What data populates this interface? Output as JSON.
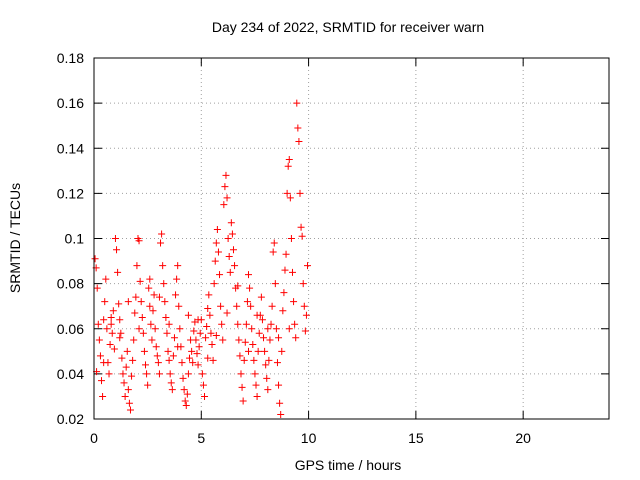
{
  "chart_data": {
    "type": "scatter",
    "title": "Day 234 of 2022, SRMTID for receiver warn",
    "xlabel": "GPS time / hours",
    "ylabel": "SRMTID / TECUs",
    "xlim": [
      0,
      24
    ],
    "ylim": [
      0.02,
      0.18
    ],
    "xticks": [
      {
        "value": 0,
        "label": "0"
      },
      {
        "value": 5,
        "label": "5"
      },
      {
        "value": 10,
        "label": "10"
      },
      {
        "value": 15,
        "label": "15"
      },
      {
        "value": 20,
        "label": "20"
      }
    ],
    "yticks": [
      {
        "value": 0.02,
        "label": "0.02"
      },
      {
        "value": 0.04,
        "label": "0.04"
      },
      {
        "value": 0.06,
        "label": "0.06"
      },
      {
        "value": 0.08,
        "label": "0.08"
      },
      {
        "value": 0.1,
        "label": "0.1"
      },
      {
        "value": 0.12,
        "label": "0.12"
      },
      {
        "value": 0.14,
        "label": "0.14"
      },
      {
        "value": 0.16,
        "label": "0.16"
      },
      {
        "value": 0.18,
        "label": "0.18"
      }
    ],
    "grid": true,
    "marker": "+",
    "color": "#ff0000",
    "series": [
      {
        "name": "SRMTID",
        "points": [
          [
            0.05,
            0.091
          ],
          [
            0.1,
            0.087
          ],
          [
            0.15,
            0.078
          ],
          [
            0.2,
            0.062
          ],
          [
            0.25,
            0.055
          ],
          [
            0.3,
            0.048
          ],
          [
            0.35,
            0.037
          ],
          [
            0.4,
            0.03
          ],
          [
            0.45,
            0.064
          ],
          [
            0.5,
            0.072
          ],
          [
            0.55,
            0.082
          ],
          [
            0.6,
            0.06
          ],
          [
            0.65,
            0.045
          ],
          [
            0.7,
            0.04
          ],
          [
            0.75,
            0.053
          ],
          [
            0.8,
            0.062
          ],
          [
            0.85,
            0.058
          ],
          [
            0.9,
            0.068
          ],
          [
            0.95,
            0.051
          ],
          [
            1.0,
            0.1
          ],
          [
            1.05,
            0.095
          ],
          [
            1.1,
            0.085
          ],
          [
            1.15,
            0.071
          ],
          [
            1.2,
            0.064
          ],
          [
            1.25,
            0.058
          ],
          [
            1.3,
            0.047
          ],
          [
            1.35,
            0.04
          ],
          [
            1.4,
            0.036
          ],
          [
            1.45,
            0.03
          ],
          [
            1.5,
            0.043
          ],
          [
            1.55,
            0.05
          ],
          [
            1.6,
            0.033
          ],
          [
            1.65,
            0.027
          ],
          [
            1.7,
            0.024
          ],
          [
            1.75,
            0.039
          ],
          [
            1.8,
            0.046
          ],
          [
            1.85,
            0.055
          ],
          [
            1.9,
            0.067
          ],
          [
            1.95,
            0.074
          ],
          [
            2.0,
            0.088
          ],
          [
            2.05,
            0.1
          ],
          [
            2.1,
            0.099
          ],
          [
            2.15,
            0.081
          ],
          [
            2.2,
            0.072
          ],
          [
            2.25,
            0.065
          ],
          [
            2.3,
            0.058
          ],
          [
            2.35,
            0.05
          ],
          [
            2.4,
            0.044
          ],
          [
            2.45,
            0.04
          ],
          [
            2.5,
            0.035
          ],
          [
            2.55,
            0.078
          ],
          [
            2.6,
            0.07
          ],
          [
            2.65,
            0.062
          ],
          [
            2.7,
            0.055
          ],
          [
            2.75,
            0.068
          ],
          [
            2.8,
            0.075
          ],
          [
            2.85,
            0.06
          ],
          [
            2.9,
            0.052
          ],
          [
            2.95,
            0.048
          ],
          [
            3.0,
            0.045
          ],
          [
            3.05,
            0.04
          ],
          [
            3.1,
            0.098
          ],
          [
            3.15,
            0.102
          ],
          [
            3.2,
            0.088
          ],
          [
            3.25,
            0.08
          ],
          [
            3.3,
            0.072
          ],
          [
            3.35,
            0.065
          ],
          [
            3.4,
            0.058
          ],
          [
            3.45,
            0.05
          ],
          [
            3.5,
            0.046
          ],
          [
            3.55,
            0.04
          ],
          [
            3.6,
            0.036
          ],
          [
            3.65,
            0.033
          ],
          [
            3.7,
            0.048
          ],
          [
            3.75,
            0.056
          ],
          [
            3.8,
            0.075
          ],
          [
            3.85,
            0.082
          ],
          [
            3.9,
            0.088
          ],
          [
            3.95,
            0.07
          ],
          [
            4.0,
            0.06
          ],
          [
            4.05,
            0.052
          ],
          [
            4.1,
            0.045
          ],
          [
            4.15,
            0.038
          ],
          [
            4.2,
            0.033
          ],
          [
            4.25,
            0.028
          ],
          [
            4.3,
            0.026
          ],
          [
            4.35,
            0.031
          ],
          [
            4.4,
            0.04
          ],
          [
            4.45,
            0.047
          ],
          [
            4.5,
            0.055
          ],
          [
            4.55,
            0.05
          ],
          [
            4.6,
            0.045
          ],
          [
            4.65,
            0.059
          ],
          [
            4.7,
            0.063
          ],
          [
            4.75,
            0.055
          ],
          [
            4.8,
            0.049
          ],
          [
            4.85,
            0.044
          ],
          [
            4.9,
            0.052
          ],
          [
            4.95,
            0.058
          ],
          [
            5.0,
            0.064
          ],
          [
            5.05,
            0.04
          ],
          [
            5.1,
            0.035
          ],
          [
            5.15,
            0.03
          ],
          [
            5.2,
            0.056
          ],
          [
            5.25,
            0.061
          ],
          [
            5.3,
            0.069
          ],
          [
            5.35,
            0.075
          ],
          [
            5.4,
            0.066
          ],
          [
            5.45,
            0.058
          ],
          [
            5.5,
            0.053
          ],
          [
            5.55,
            0.046
          ],
          [
            5.6,
            0.08
          ],
          [
            5.65,
            0.09
          ],
          [
            5.7,
            0.098
          ],
          [
            5.75,
            0.104
          ],
          [
            5.8,
            0.094
          ],
          [
            5.85,
            0.084
          ],
          [
            5.9,
            0.07
          ],
          [
            5.95,
            0.062
          ],
          [
            6.0,
            0.055
          ],
          [
            6.05,
            0.115
          ],
          [
            6.1,
            0.123
          ],
          [
            6.15,
            0.128
          ],
          [
            6.2,
            0.118
          ],
          [
            6.25,
            0.1
          ],
          [
            6.3,
            0.092
          ],
          [
            6.35,
            0.085
          ],
          [
            6.4,
            0.107
          ],
          [
            6.45,
            0.102
          ],
          [
            6.5,
            0.095
          ],
          [
            6.55,
            0.088
          ],
          [
            6.6,
            0.078
          ],
          [
            6.65,
            0.07
          ],
          [
            6.7,
            0.062
          ],
          [
            6.75,
            0.055
          ],
          [
            6.8,
            0.048
          ],
          [
            6.85,
            0.04
          ],
          [
            6.9,
            0.034
          ],
          [
            6.95,
            0.028
          ],
          [
            7.0,
            0.046
          ],
          [
            7.05,
            0.054
          ],
          [
            7.1,
            0.062
          ],
          [
            7.15,
            0.072
          ],
          [
            7.2,
            0.084
          ],
          [
            7.25,
            0.078
          ],
          [
            7.3,
            0.07
          ],
          [
            7.35,
            0.06
          ],
          [
            7.4,
            0.053
          ],
          [
            7.45,
            0.046
          ],
          [
            7.5,
            0.04
          ],
          [
            7.55,
            0.035
          ],
          [
            7.6,
            0.03
          ],
          [
            7.65,
            0.05
          ],
          [
            7.7,
            0.058
          ],
          [
            7.75,
            0.066
          ],
          [
            7.8,
            0.074
          ],
          [
            7.85,
            0.064
          ],
          [
            7.9,
            0.056
          ],
          [
            7.95,
            0.05
          ],
          [
            8.0,
            0.044
          ],
          [
            8.05,
            0.038
          ],
          [
            8.1,
            0.033
          ],
          [
            8.15,
            0.046
          ],
          [
            8.2,
            0.055
          ],
          [
            8.25,
            0.062
          ],
          [
            8.3,
            0.07
          ],
          [
            8.35,
            0.094
          ],
          [
            8.4,
            0.098
          ],
          [
            8.45,
            0.08
          ],
          [
            8.5,
            0.06
          ],
          [
            8.55,
            0.045
          ],
          [
            8.6,
            0.035
          ],
          [
            8.65,
            0.027
          ],
          [
            8.7,
            0.022
          ],
          [
            8.75,
            0.05
          ],
          [
            8.8,
            0.068
          ],
          [
            8.85,
            0.076
          ],
          [
            8.9,
            0.086
          ],
          [
            8.95,
            0.093
          ],
          [
            9.0,
            0.12
          ],
          [
            9.05,
            0.132
          ],
          [
            9.1,
            0.135
          ],
          [
            9.15,
            0.118
          ],
          [
            9.2,
            0.1
          ],
          [
            9.25,
            0.085
          ],
          [
            9.3,
            0.072
          ],
          [
            9.35,
            0.062
          ],
          [
            9.4,
            0.056
          ],
          [
            9.45,
            0.16
          ],
          [
            9.5,
            0.149
          ],
          [
            9.55,
            0.143
          ],
          [
            9.6,
            0.12
          ],
          [
            9.65,
            0.105
          ],
          [
            9.7,
            0.101
          ],
          [
            9.75,
            0.08
          ],
          [
            9.8,
            0.07
          ],
          [
            9.85,
            0.059
          ],
          [
            9.9,
            0.066
          ],
          [
            9.95,
            0.088
          ],
          [
            0.12,
            0.041
          ],
          [
            0.45,
            0.045
          ],
          [
            0.8,
            0.065
          ],
          [
            1.2,
            0.056
          ],
          [
            1.6,
            0.072
          ],
          [
            2.1,
            0.06
          ],
          [
            2.6,
            0.082
          ],
          [
            3.05,
            0.074
          ],
          [
            3.5,
            0.062
          ],
          [
            3.9,
            0.052
          ],
          [
            4.4,
            0.066
          ],
          [
            4.85,
            0.064
          ],
          [
            5.3,
            0.047
          ],
          [
            5.7,
            0.057
          ],
          [
            6.2,
            0.067
          ],
          [
            6.7,
            0.079
          ],
          [
            7.2,
            0.05
          ],
          [
            7.6,
            0.066
          ],
          [
            8.1,
            0.06
          ],
          [
            8.6,
            0.056
          ],
          [
            9.1,
            0.06
          ]
        ]
      }
    ]
  }
}
